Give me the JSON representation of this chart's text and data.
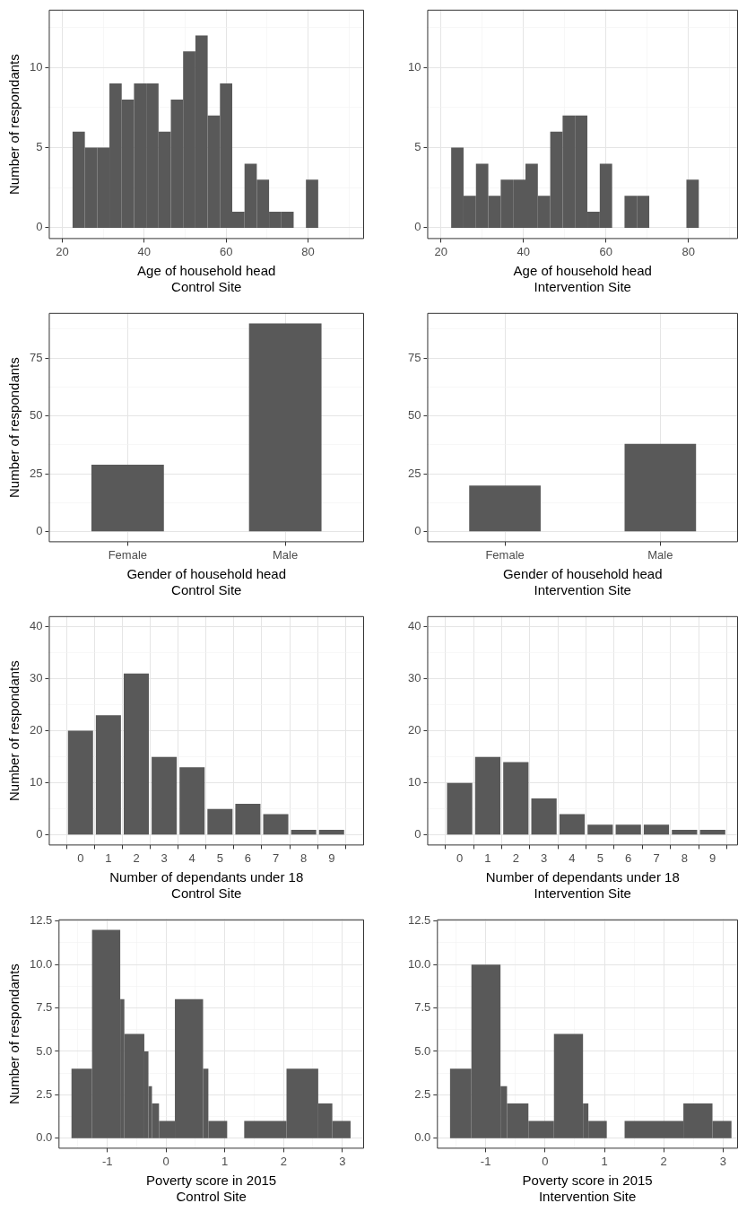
{
  "chart_data": [
    {
      "type": "histogram",
      "xlabel": "Age of household head\nControl Site",
      "ylabel": "Number of respondants",
      "color": "#595959",
      "bins": [
        22.5,
        25.5,
        28.5,
        31.5,
        34.5,
        37.5,
        40.5,
        43.5,
        46.5,
        49.5,
        52.5,
        55.5,
        58.5,
        61.5,
        64.5,
        67.5,
        70.5,
        73.5,
        76.5,
        79.5,
        82.5
      ],
      "values": [
        6,
        5,
        5,
        9,
        8,
        9,
        9,
        6,
        8,
        11,
        12,
        7,
        9,
        1,
        4,
        3,
        1,
        1,
        0,
        3
      ],
      "xlim": [
        16.7,
        93.7
      ],
      "xticks": [
        20,
        {
          "value": 30,
          "label": null
        },
        40,
        {
          "value": 50,
          "label": null
        },
        60,
        {
          "value": 70,
          "label": null
        },
        80,
        {
          "value": 90,
          "label": null
        }
      ],
      "ylim": [
        -0.7,
        13.6
      ],
      "yticks": [
        0,
        {
          "value": 2.5,
          "label": null
        },
        5,
        {
          "value": 7.5,
          "label": null
        },
        10,
        {
          "value": 12.5,
          "label": null
        }
      ],
      "grid": true
    },
    {
      "type": "histogram",
      "xlabel": "Age of household head\nIntervention Site",
      "color": "#595959",
      "bins": [
        22.5,
        25.5,
        28.5,
        31.5,
        34.5,
        37.5,
        40.5,
        43.5,
        46.5,
        49.5,
        52.5,
        55.5,
        58.5,
        61.5,
        64.5,
        67.5,
        70.5,
        73.5,
        76.5,
        79.5,
        82.5
      ],
      "values": [
        5,
        2,
        4,
        2,
        3,
        3,
        4,
        2,
        6,
        7,
        7,
        1,
        4,
        0,
        2,
        2,
        0,
        0,
        0,
        3
      ],
      "xlim": [
        16.7,
        92
      ],
      "xticks": [
        20,
        {
          "value": 30,
          "label": null
        },
        40,
        {
          "value": 50,
          "label": null
        },
        60,
        {
          "value": 70,
          "label": null
        },
        80,
        {
          "value": 90,
          "label": null
        }
      ],
      "ylim": [
        -0.7,
        13.6
      ],
      "yticks": [
        0,
        {
          "value": 2.5,
          "label": null
        },
        5,
        {
          "value": 7.5,
          "label": null
        },
        10,
        {
          "value": 12.5,
          "label": null
        }
      ],
      "grid": true
    },
    {
      "type": "bar",
      "xlabel": "Gender of household head\nControl Site",
      "ylabel": "Number of respondants",
      "color": "#595959",
      "categories": [
        "Female",
        "Male"
      ],
      "values": [
        29,
        90
      ],
      "ylim": [
        -4.5,
        94.5
      ],
      "yticks": [
        0,
        {
          "value": 12.5,
          "label": null
        },
        25,
        {
          "value": 37.5,
          "label": null
        },
        50,
        {
          "value": 62.5,
          "label": null
        },
        75,
        {
          "value": 87.5,
          "label": null
        }
      ],
      "grid": true
    },
    {
      "type": "bar",
      "xlabel": "Gender of household head\nIntervention Site",
      "color": "#595959",
      "categories": [
        "Female",
        "Male"
      ],
      "values": [
        20,
        38
      ],
      "ylim": [
        -4.5,
        94.5
      ],
      "yticks": [
        0,
        {
          "value": 12.5,
          "label": null
        },
        25,
        {
          "value": 37.5,
          "label": null
        },
        50,
        {
          "value": 62.5,
          "label": null
        },
        75,
        {
          "value": 87.5,
          "label": null
        }
      ],
      "grid": true
    },
    {
      "type": "bar",
      "xlabel": "Number of dependants under 18\nControl Site",
      "ylabel": "Number of respondants",
      "color": "#595959",
      "x": [
        0,
        1,
        2,
        3,
        4,
        5,
        6,
        7,
        8,
        9
      ],
      "values": [
        20,
        23,
        31,
        15,
        13,
        5,
        6,
        4,
        1,
        1
      ],
      "xlim": [
        -0.57,
        9.6
      ],
      "xticks": [
        0,
        1,
        2,
        3,
        4,
        5,
        6,
        7,
        8,
        9
      ],
      "ylim": [
        -2,
        42
      ],
      "yticks": [
        0,
        {
          "value": 5,
          "label": null
        },
        10,
        {
          "value": 15,
          "label": null
        },
        20,
        {
          "value": 25,
          "label": null
        },
        30,
        {
          "value": 35,
          "label": null
        },
        40
      ],
      "grid": true
    },
    {
      "type": "bar",
      "xlabel": "Number of dependants under 18\nIntervention Site",
      "color": "#595959",
      "x": [
        0,
        1,
        2,
        3,
        4,
        5,
        6,
        7,
        8,
        9
      ],
      "values": [
        10,
        15,
        14,
        7,
        4,
        2,
        2,
        2,
        1,
        1
      ],
      "xlim": [
        -0.6,
        9.35
      ],
      "xticks": [
        0,
        1,
        2,
        3,
        4,
        5,
        6,
        7,
        8,
        9
      ],
      "ylim": [
        -2,
        42
      ],
      "yticks": [
        0,
        {
          "value": 5,
          "label": null
        },
        10,
        {
          "value": 15,
          "label": null
        },
        20,
        {
          "value": 25,
          "label": null
        },
        30,
        {
          "value": 35,
          "label": null
        },
        40
      ],
      "grid": true
    },
    {
      "type": "histogram",
      "xlabel": "Poverty score in 2015\nControl Site",
      "ylabel": "Number of respondants",
      "color": "#595959",
      "bins": [
        -1.61,
        -1.26,
        -0.78,
        -0.71,
        -0.37,
        -0.3,
        -0.24,
        -0.12,
        0.15,
        0.63,
        0.72,
        1.04,
        1.33,
        2.05,
        2.59,
        2.83,
        3.14
      ],
      "values": [
        4,
        12,
        8,
        6,
        5,
        3,
        2,
        1,
        8,
        4,
        1,
        0,
        1,
        4,
        2,
        1
      ],
      "xlim": [
        -1.83,
        3.37
      ],
      "xticks": [
        {
          "value": -1.5,
          "label": null
        },
        -1,
        {
          "value": -0.5,
          "label": null
        },
        0,
        {
          "value": 0.5,
          "label": null
        },
        1,
        {
          "value": 1.5,
          "label": null
        },
        2,
        {
          "value": 2.5,
          "label": null
        },
        3
      ],
      "ylim": [
        -0.6,
        12.6
      ],
      "yticks": [
        {
          "value": 0,
          "label": "0.0"
        },
        {
          "value": 1.25,
          "label": null
        },
        {
          "value": 2.5,
          "label": "2.5"
        },
        {
          "value": 3.75,
          "label": null
        },
        {
          "value": 5,
          "label": "5.0"
        },
        {
          "value": 6.25,
          "label": null
        },
        {
          "value": 7.5,
          "label": "7.5"
        },
        {
          "value": 8.75,
          "label": null
        },
        {
          "value": 10,
          "label": "10.0"
        },
        {
          "value": 11.25,
          "label": null
        },
        {
          "value": 12.5,
          "label": "12.5"
        }
      ],
      "grid": true
    },
    {
      "type": "histogram",
      "xlabel": "Poverty score in 2015\nIntervention Site",
      "color": "#595959",
      "bins": [
        -1.6,
        -1.24,
        -0.75,
        -0.64,
        -0.28,
        0.15,
        0.64,
        0.73,
        1.04,
        1.34,
        2.33,
        2.82,
        3.14
      ],
      "values": [
        4,
        10,
        3,
        2,
        1,
        6,
        2,
        1,
        0,
        1,
        2,
        1
      ],
      "xlim": [
        -1.82,
        3.25
      ],
      "xticks": [
        {
          "value": -1.5,
          "label": null
        },
        -1,
        {
          "value": -0.5,
          "label": null
        },
        0,
        {
          "value": 0.5,
          "label": null
        },
        1,
        {
          "value": 1.5,
          "label": null
        },
        2,
        {
          "value": 2.5,
          "label": null
        },
        3
      ],
      "ylim": [
        -0.6,
        12.6
      ],
      "yticks": [
        {
          "value": 0,
          "label": "0.0"
        },
        {
          "value": 1.25,
          "label": null
        },
        {
          "value": 2.5,
          "label": "2.5"
        },
        {
          "value": 3.75,
          "label": null
        },
        {
          "value": 5,
          "label": "5.0"
        },
        {
          "value": 6.25,
          "label": null
        },
        {
          "value": 7.5,
          "label": "7.5"
        },
        {
          "value": 8.75,
          "label": null
        },
        {
          "value": 10,
          "label": "10.0"
        },
        {
          "value": 11.25,
          "label": null
        },
        {
          "value": 12.5,
          "label": "12.5"
        }
      ],
      "grid": true
    }
  ]
}
